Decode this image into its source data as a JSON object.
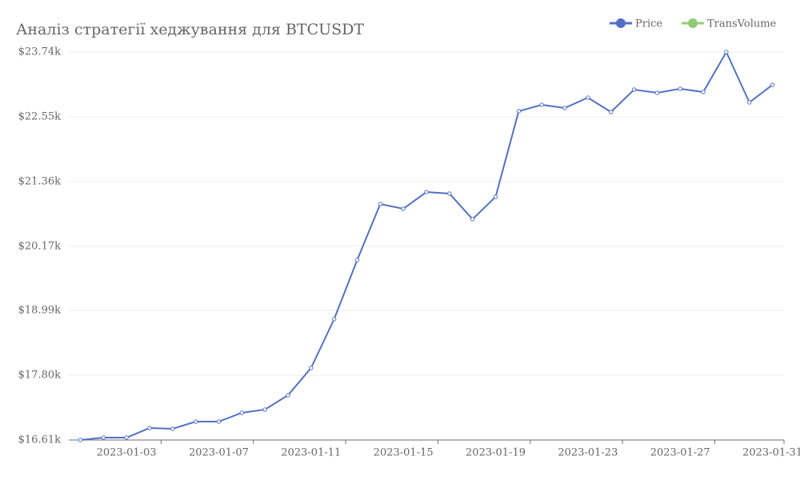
{
  "chart_data": {
    "type": "line",
    "title": "Аналіз стратегії хеджування для BTCUSDT",
    "categories": [
      null,
      null,
      "2023-01-03",
      null,
      null,
      null,
      "2023-01-07",
      null,
      null,
      null,
      "2023-01-11",
      null,
      null,
      null,
      "2023-01-15",
      null,
      null,
      null,
      "2023-01-19",
      null,
      null,
      null,
      "2023-01-23",
      null,
      null,
      null,
      "2023-01-27",
      null,
      null,
      null,
      "2023-01-31"
    ],
    "series": [
      {
        "name": "Price",
        "color": "#5470c6",
        "values": [
          16610,
          16654,
          16654,
          16830,
          16816,
          16948,
          16948,
          17110,
          17169,
          17433,
          17933,
          18830,
          19918,
          20947,
          20859,
          21167,
          21138,
          20668,
          21079,
          22652,
          22770,
          22711,
          22902,
          22637,
          23049,
          22990,
          23064,
          23005,
          23740,
          22814,
          23137
        ]
      },
      {
        "name": "TransVolume",
        "color": "#91cc75",
        "values": [
          null,
          null,
          null,
          null,
          null,
          null,
          null,
          null,
          null,
          null,
          null,
          null,
          null,
          null,
          null,
          null,
          null,
          null,
          null,
          null,
          null,
          null,
          null,
          null,
          null,
          null,
          null,
          null,
          null,
          null,
          null
        ]
      }
    ],
    "ylim": [
      16610,
      23740
    ],
    "yticks": [
      {
        "value": 16610,
        "label": "$16.61k"
      },
      {
        "value": 17800,
        "label": "$17.80k"
      },
      {
        "value": 18990,
        "label": "$18.99k"
      },
      {
        "value": 20170,
        "label": "$20.17k"
      },
      {
        "value": 21360,
        "label": "$21.36k"
      },
      {
        "value": 22550,
        "label": "$22.55k"
      },
      {
        "value": 23740,
        "label": "$23.74k"
      }
    ],
    "grid": true,
    "legend": "top-right"
  }
}
